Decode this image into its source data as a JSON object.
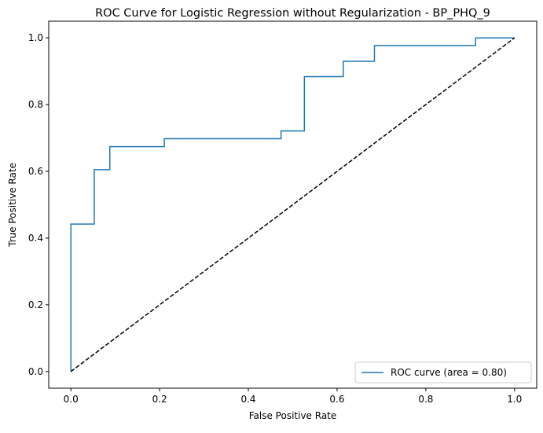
{
  "chart_data": {
    "type": "line",
    "title": "ROC Curve for Logistic Regression without Regularization - BP_PHQ_9",
    "xlabel": "False Positive Rate",
    "ylabel": "True Positive Rate",
    "xlim": [
      -0.05,
      1.05
    ],
    "ylim": [
      -0.05,
      1.05
    ],
    "xticks": [
      0.0,
      0.2,
      0.4,
      0.6,
      0.8,
      1.0
    ],
    "yticks": [
      0.0,
      0.2,
      0.4,
      0.6,
      0.8,
      1.0
    ],
    "xtick_labels": [
      "0.0",
      "0.2",
      "0.4",
      "0.6",
      "0.8",
      "1.0"
    ],
    "ytick_labels": [
      "0.0",
      "0.2",
      "0.4",
      "0.6",
      "0.8",
      "1.0"
    ],
    "grid": false,
    "legend_position": "lower-right",
    "series": [
      {
        "name": "ROC curve (area = 0.80)",
        "color": "#1f77b4",
        "style": "solid",
        "x": [
          0.0,
          0.0,
          0.0526,
          0.0526,
          0.0877,
          0.0877,
          0.2105,
          0.2105,
          0.4737,
          0.4737,
          0.5263,
          0.5263,
          0.614,
          0.614,
          0.6842,
          0.6842,
          0.9123,
          0.9123,
          1.0
        ],
        "y": [
          0.0,
          0.442,
          0.442,
          0.605,
          0.605,
          0.674,
          0.674,
          0.698,
          0.698,
          0.721,
          0.721,
          0.884,
          0.884,
          0.93,
          0.93,
          0.977,
          0.977,
          1.0,
          1.0
        ]
      },
      {
        "name": "",
        "color": "#000000",
        "style": "dashed",
        "x": [
          0.0,
          1.0
        ],
        "y": [
          0.0,
          1.0
        ]
      }
    ]
  }
}
